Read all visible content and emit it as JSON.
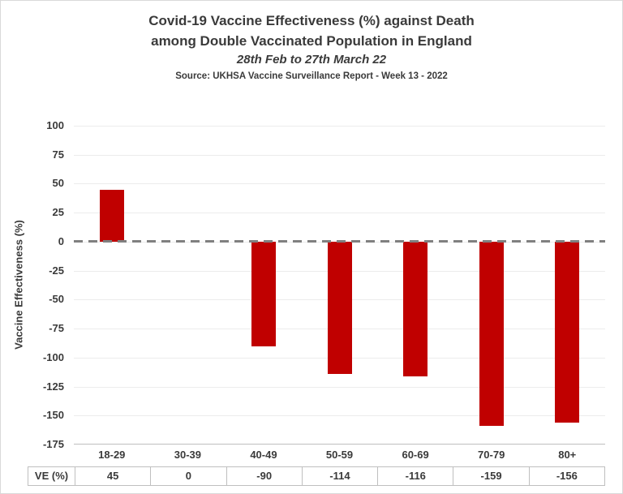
{
  "title": {
    "line1": "Covid-19 Vaccine Effectiveness (%) against Death",
    "line2": "among Double Vaccinated Population in England",
    "subtitle": "28th Feb to 27th March 22",
    "source": "Source: UKHSA Vaccine Surveillance Report - Week 13 - 2022"
  },
  "chart_data": {
    "type": "bar",
    "title": "Covid-19 Vaccine Effectiveness (%) against Death among Double Vaccinated Population in England",
    "subtitle": "28th Feb to 27th March 22",
    "source": "Source: UKHSA Vaccine Surveillance Report - Week 13 - 2022",
    "categories": [
      "18-29",
      "30-39",
      "40-49",
      "50-59",
      "60-69",
      "70-79",
      "80+"
    ],
    "values": [
      45,
      0,
      -90,
      -114,
      -116,
      -159,
      -156
    ],
    "xlabel": "",
    "ylabel": "Vaccine Effectiveness (%)",
    "ylim": [
      -175,
      100
    ],
    "ytick_step": 25,
    "grid": true,
    "legend": "none",
    "zero_line_style": "dashed",
    "table_row_label": "VE (%)",
    "table_values": [
      "45",
      "0",
      "-90",
      "-114",
      "-116",
      "-159",
      "-156"
    ]
  },
  "colors": {
    "bar": "#c00000",
    "text": "#3a3a3a",
    "zero_line": "#808080",
    "grid_line": "#ececec",
    "table_border": "#bfbfbf"
  }
}
